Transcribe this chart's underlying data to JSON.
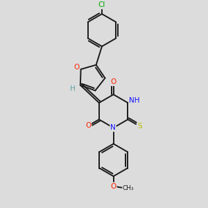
{
  "background_color": "#dcdcdc",
  "bond_color": "#1a1a1a",
  "atom_colors": {
    "O": "#ff2000",
    "N": "#1010ff",
    "S": "#bbbb00",
    "Cl": "#00aa00",
    "C": "#1a1a1a",
    "H": "#60a0a0"
  },
  "figsize": [
    3.0,
    3.0
  ],
  "dpi": 100
}
